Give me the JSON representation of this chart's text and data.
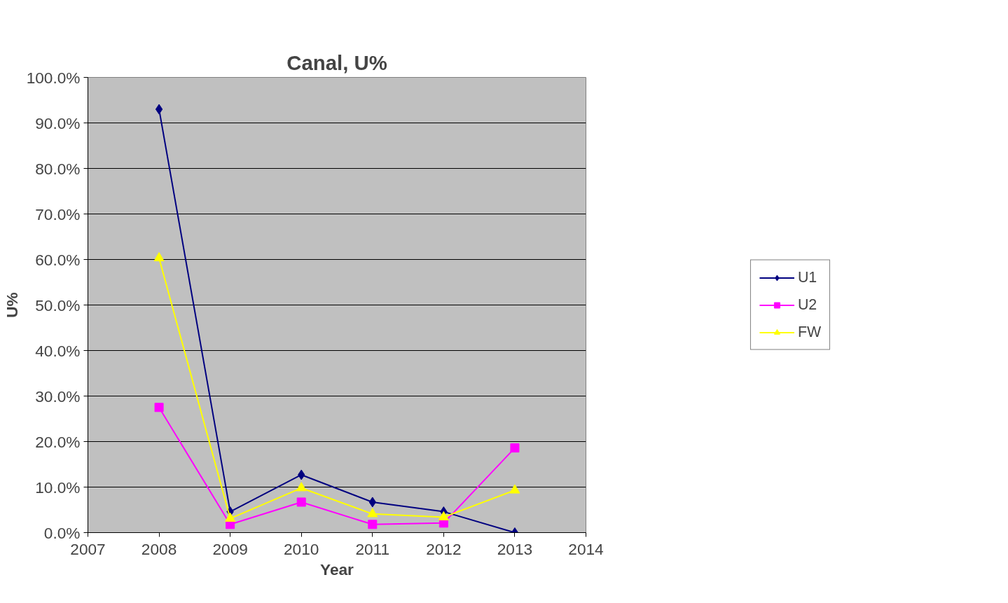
{
  "chart_data": {
    "type": "line",
    "title": "Canal, U%",
    "xlabel": "Year",
    "ylabel": "U%",
    "x": [
      2008,
      2009,
      2010,
      2011,
      2012,
      2013
    ],
    "series": [
      {
        "name": "U1",
        "color": "#000080",
        "marker": "diamond",
        "values": [
          93.0,
          4.6,
          12.7,
          6.7,
          4.6,
          0.0
        ]
      },
      {
        "name": "U2",
        "color": "#ff00ff",
        "marker": "square",
        "values": [
          27.5,
          1.8,
          6.7,
          1.8,
          2.1,
          18.6
        ]
      },
      {
        "name": "FW",
        "color": "#ffff00",
        "marker": "triangle",
        "values": [
          60.3,
          3.1,
          9.8,
          4.1,
          3.4,
          9.3
        ]
      }
    ],
    "xlim": [
      2007,
      2014
    ],
    "xticks": [
      2007,
      2008,
      2009,
      2010,
      2011,
      2012,
      2013,
      2014
    ],
    "ylim": [
      0,
      100
    ],
    "yticks": [
      {
        "value": 0,
        "label": "0.0%"
      },
      {
        "value": 10,
        "label": "10.0%"
      },
      {
        "value": 20,
        "label": "20.0%"
      },
      {
        "value": 30,
        "label": "30.0%"
      },
      {
        "value": 40,
        "label": "40.0%"
      },
      {
        "value": 50,
        "label": "50.0%"
      },
      {
        "value": 60,
        "label": "60.0%"
      },
      {
        "value": 70,
        "label": "70.0%"
      },
      {
        "value": 80,
        "label": "80.0%"
      },
      {
        "value": 90,
        "label": "90.0%"
      },
      {
        "value": 100,
        "label": "100.0%"
      }
    ],
    "grid": "y",
    "legend": "right",
    "line_style": "solid"
  }
}
